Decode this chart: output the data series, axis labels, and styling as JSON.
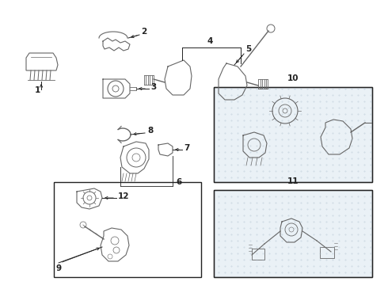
{
  "bg": "#ffffff",
  "lc": "#666666",
  "dc": "#222222",
  "box_bg": "#dde8f0",
  "figsize": [
    4.9,
    3.6
  ],
  "dpi": 100
}
